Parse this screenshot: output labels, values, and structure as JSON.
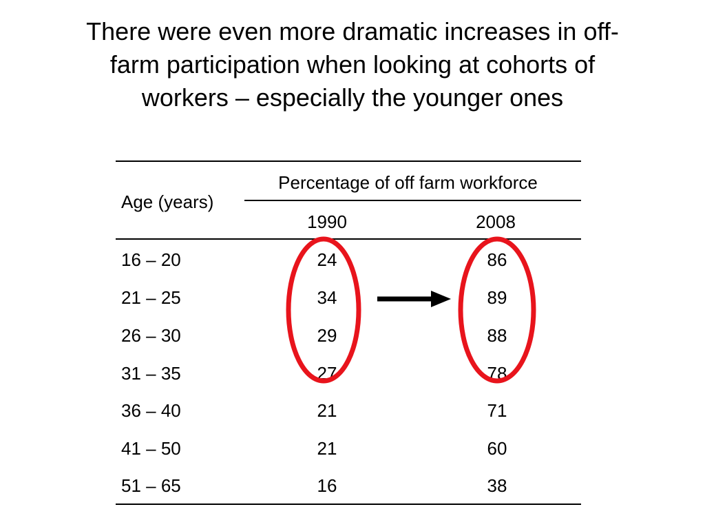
{
  "slide": {
    "title_lines": [
      "There were even more dramatic increases in off-",
      "farm participation when looking at cohorts of",
      "workers – especially the younger ones"
    ]
  },
  "table": {
    "row_header_label": "Age (years)",
    "group_header": "Percentage of off farm workforce",
    "columns": [
      "1990",
      "2008"
    ],
    "rows": [
      {
        "age": "16 – 20",
        "v1990": "24",
        "v2008": "86"
      },
      {
        "age": "21 – 25",
        "v1990": "34",
        "v2008": "89"
      },
      {
        "age": "26 – 30",
        "v1990": "29",
        "v2008": "88"
      },
      {
        "age": "31 – 35",
        "v1990": "27",
        "v2008": "78"
      },
      {
        "age": "36 – 40",
        "v1990": "21",
        "v2008": "71"
      },
      {
        "age": "41 – 50",
        "v1990": "21",
        "v2008": "60"
      },
      {
        "age": "51 – 65",
        "v1990": "16",
        "v2008": "38"
      }
    ]
  },
  "annotations": {
    "circle_color": "#e8141c",
    "arrow_color": "#000000"
  }
}
